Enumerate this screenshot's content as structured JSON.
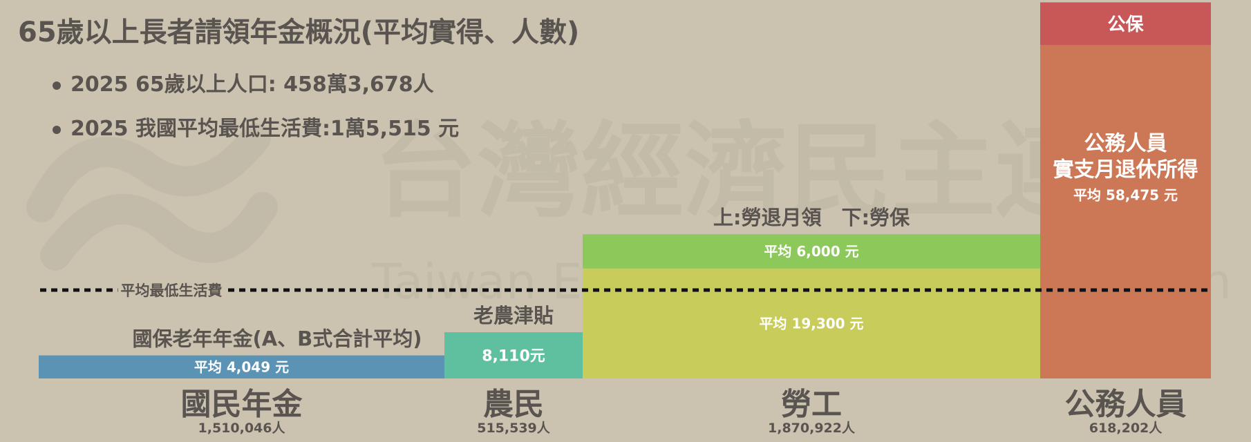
{
  "title": "65歲以上長者請領年金概況(平均實得、人數)",
  "bullets": [
    "2025 65歲以上人口: 458萬3,678人",
    "2025 我國平均最低生活費:1萬5,515 元"
  ],
  "watermark": {
    "zh": "台灣經濟民主連合",
    "en": "Taiwan Economic Democracy Union"
  },
  "colors": {
    "background": "#cbc3b0",
    "national": "#5b93b5",
    "farmer": "#5fc0a0",
    "labor_insurance": "#c8cc5a",
    "labor_pension": "#8cc85a",
    "civil_servant": "#cc7755",
    "gov_insurance": "#c85858"
  },
  "chart_data": {
    "type": "bar",
    "ylim": [
      0,
      63000
    ],
    "reference_line": {
      "label": "平均最低生活費",
      "value": 15515
    },
    "categories": [
      {
        "name": "國民年金",
        "count": "1,510,046人",
        "top_label": "國保老年年金(A、B式合計平均)",
        "segments": [
          {
            "value": 4049,
            "label": "平均 4,049 元",
            "color": "#5b93b5"
          }
        ]
      },
      {
        "name": "農民",
        "count": "515,539人",
        "top_label": "老農津貼",
        "segments": [
          {
            "value": 8110,
            "label": "8,110元",
            "color": "#5fc0a0"
          }
        ]
      },
      {
        "name": "勞工",
        "count": "1,870,922人",
        "top_label": "上:勞退月領　下:勞保",
        "segments": [
          {
            "value": 19300,
            "label": "平均 19,300 元",
            "color": "#c8cc5a"
          },
          {
            "value": 6000,
            "label": "平均 6,000 元",
            "color": "#8cc85a"
          }
        ]
      },
      {
        "name": "公務人員",
        "count": "618,202人",
        "top_label": "",
        "segments": [
          {
            "value": 58475,
            "label": "公務人員\n實支月退休所得\n平均 58,475 元",
            "color": "#cc7755"
          },
          {
            "value": 7500,
            "label": "公保",
            "color": "#c85858"
          }
        ]
      }
    ]
  }
}
